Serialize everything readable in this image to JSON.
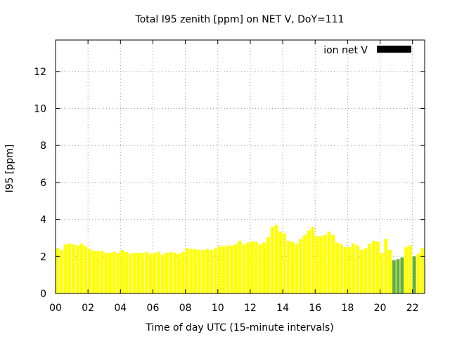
{
  "chart_data": {
    "type": "bar",
    "title": "Total I95 zenith [ppm] on NET V, DoY=111",
    "xlabel": "Time of day UTC (15-minute intervals)",
    "ylabel": "I95 [ppm]",
    "xlim": [
      0,
      22.75
    ],
    "ylim": [
      0,
      13.7
    ],
    "xticks": [
      "00",
      "02",
      "04",
      "06",
      "08",
      "10",
      "12",
      "14",
      "16",
      "18",
      "20",
      "22"
    ],
    "yticks": [
      "0",
      "2",
      "4",
      "6",
      "8",
      "10",
      "12"
    ],
    "grid": true,
    "legend": {
      "position": "top-right",
      "label": "ion net V",
      "color": "#000000"
    },
    "bar_interval_hours": 0.25,
    "series": [
      {
        "name": "ion net V",
        "x_start": 0,
        "values": [
          2.45,
          2.35,
          2.65,
          2.7,
          2.65,
          2.6,
          2.7,
          2.55,
          2.4,
          2.3,
          2.3,
          2.3,
          2.2,
          2.2,
          2.25,
          2.2,
          2.35,
          2.25,
          2.15,
          2.2,
          2.2,
          2.2,
          2.25,
          2.15,
          2.2,
          2.25,
          2.1,
          2.2,
          2.25,
          2.2,
          2.15,
          2.25,
          2.45,
          2.4,
          2.4,
          2.35,
          2.35,
          2.4,
          2.35,
          2.45,
          2.55,
          2.55,
          2.6,
          2.6,
          2.65,
          2.85,
          2.65,
          2.75,
          2.8,
          2.8,
          2.65,
          2.75,
          3.05,
          3.6,
          3.7,
          3.35,
          3.25,
          2.85,
          2.8,
          2.7,
          2.95,
          3.15,
          3.4,
          3.6,
          3.1,
          3.1,
          3.15,
          3.35,
          3.15,
          2.75,
          2.65,
          2.5,
          2.5,
          2.7,
          2.6,
          2.35,
          2.45,
          2.7,
          2.85,
          2.8,
          2.2,
          2.95,
          2.35,
          1.8,
          1.85,
          1.95,
          2.5,
          2.6,
          2.0,
          2.15,
          2.45
        ],
        "colors": [
          "#ffff00",
          "#ffff00",
          "#ffff00",
          "#ffff00",
          "#ffff00",
          "#ffff00",
          "#ffff00",
          "#ffff00",
          "#ffff00",
          "#ffff00",
          "#ffff00",
          "#ffff00",
          "#ffff00",
          "#ffff00",
          "#ffff00",
          "#ffff00",
          "#ffff00",
          "#ffff00",
          "#ffff00",
          "#ffff00",
          "#ffff00",
          "#ffff00",
          "#ffff00",
          "#ffff00",
          "#ffff00",
          "#ffff00",
          "#ffff00",
          "#ffff00",
          "#ffff00",
          "#ffff00",
          "#ffff00",
          "#ffff00",
          "#ffff00",
          "#ffff00",
          "#ffff00",
          "#ffff00",
          "#ffff00",
          "#ffff00",
          "#ffff00",
          "#ffff00",
          "#ffff00",
          "#ffff00",
          "#ffff00",
          "#ffff00",
          "#ffff00",
          "#ffff00",
          "#ffff00",
          "#ffff00",
          "#ffff00",
          "#ffff00",
          "#ffff00",
          "#ffff00",
          "#ffff00",
          "#ffff00",
          "#ffff00",
          "#ffff00",
          "#ffff00",
          "#ffff00",
          "#ffff00",
          "#ffff00",
          "#ffff00",
          "#ffff00",
          "#ffff00",
          "#ffff00",
          "#ffff00",
          "#ffff00",
          "#ffff00",
          "#ffff00",
          "#ffff00",
          "#ffff00",
          "#ffff00",
          "#ffff00",
          "#ffff00",
          "#ffff00",
          "#ffff00",
          "#ffff00",
          "#ffff00",
          "#ffff00",
          "#ffff00",
          "#ffff00",
          "#ffff00",
          "#ffff00",
          "#ffff00",
          "#66b032",
          "#66b032",
          "#66b032",
          "#ffff00",
          "#ffff00",
          "#66b032",
          "#ffff00",
          "#ffff00"
        ]
      }
    ]
  }
}
